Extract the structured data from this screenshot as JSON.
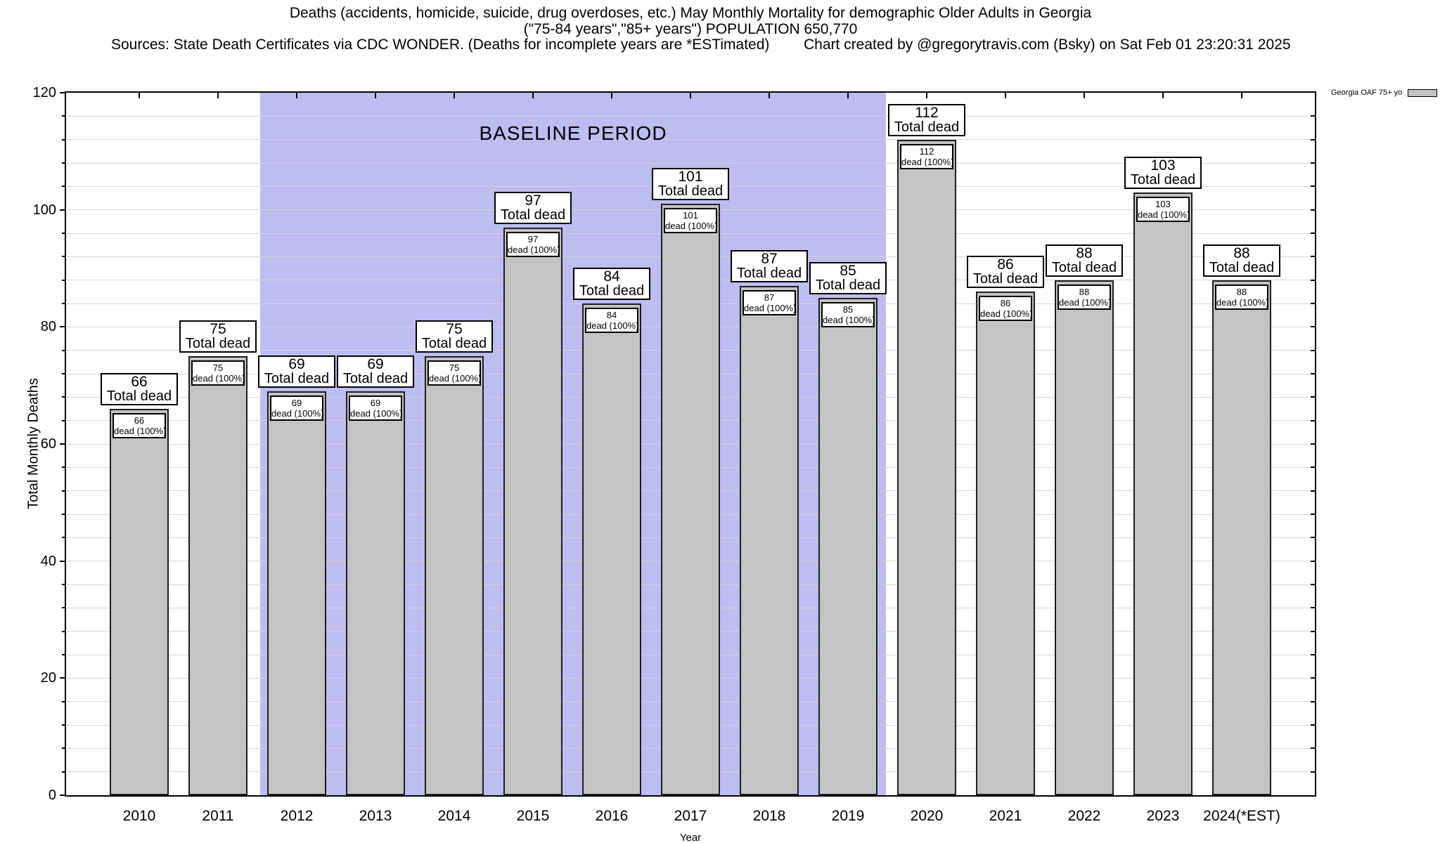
{
  "header": {
    "title_line1": "Deaths (accidents, homicide, suicide, drug overdoses, etc.) May Monthly Mortality for demographic Older Adults in Georgia",
    "title_line2": "(\"75-84 years\",\"85+ years\") POPULATION 650,770",
    "sources": "Sources: State Death Certificates via CDC WONDER. (Deaths for incomplete years are *ESTimated)",
    "credit": "Chart created by @gregorytravis.com (Bsky) on Sat Feb 01 23:20:31 2025"
  },
  "legend": {
    "label": "Georgia OAF 75+ yo",
    "swatch_color": "#c4c4c4"
  },
  "chart_data": {
    "type": "bar",
    "title": "Deaths (accidents, homicide, suicide, drug overdoses, etc.) May Monthly Mortality for demographic Older Adults in Georgia",
    "xlabel": "Year",
    "ylabel": "Total Monthly Deaths",
    "ylim": [
      0,
      120
    ],
    "yticks": [
      0,
      20,
      40,
      60,
      80,
      100,
      120
    ],
    "minor_gridline_step": 4,
    "grid": true,
    "legend_position": "top-right",
    "series_name": "Georgia OAF 75+ yo",
    "categories": [
      "2010",
      "2011",
      "2012",
      "2013",
      "2014",
      "2015",
      "2016",
      "2017",
      "2018",
      "2019",
      "2020",
      "2021",
      "2022",
      "2023",
      "2024(*EST)"
    ],
    "values": [
      66,
      75,
      69,
      69,
      75,
      97,
      84,
      101,
      87,
      85,
      112,
      86,
      88,
      103,
      88
    ],
    "bar_top_label_suffix": "Total dead",
    "bar_inner_label_suffix": "dead (100%)",
    "baseline": {
      "label": "BASELINE PERIOD",
      "from_category": "2012",
      "to_category": "2019"
    },
    "colors": {
      "bar_fill": "#c4c4c4",
      "bar_border": "#1f1f1f",
      "baseline_fill": "#bdbdf2",
      "gridline": "#d4d4d4"
    }
  }
}
